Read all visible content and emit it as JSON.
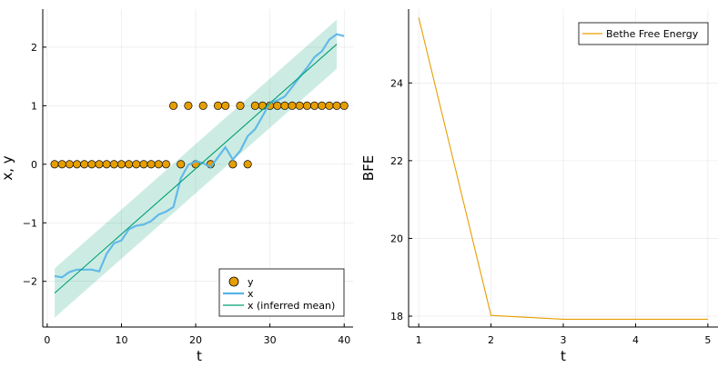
{
  "chart_data": [
    {
      "type": "scatter+line",
      "xlabel": "t",
      "ylabel": "x, y",
      "xlim": [
        -0.6,
        41.2
      ],
      "ylim": [
        -2.78,
        2.65
      ],
      "xticks": [
        0,
        10,
        20,
        30,
        40
      ],
      "yticks": [
        -2,
        -1,
        0,
        1,
        2
      ],
      "ytick_labels": [
        "−2",
        "−1",
        "0",
        "1",
        "2"
      ],
      "grid": true,
      "legend_position": "bottom-right",
      "series": [
        {
          "name": "y",
          "kind": "scatter",
          "color": "#e69f00",
          "x": [
            1,
            2,
            3,
            4,
            5,
            6,
            7,
            8,
            9,
            10,
            11,
            12,
            13,
            14,
            15,
            16,
            17,
            18,
            19,
            20,
            21,
            22,
            23,
            24,
            25,
            26,
            27,
            28,
            29,
            30,
            31,
            32,
            33,
            34,
            35,
            36,
            37,
            38,
            39,
            40
          ],
          "y": [
            0,
            0,
            0,
            0,
            0,
            0,
            0,
            0,
            0,
            0,
            0,
            0,
            0,
            0,
            0,
            0,
            1,
            0,
            1,
            0,
            1,
            0,
            1,
            1,
            0,
            1,
            0,
            1,
            1,
            1,
            1,
            1,
            1,
            1,
            1,
            1,
            1,
            1,
            1,
            1
          ]
        },
        {
          "name": "x",
          "kind": "line",
          "color": "#56b4e9",
          "x": [
            1,
            2,
            3,
            4,
            5,
            6,
            7,
            8,
            9,
            10,
            11,
            12,
            13,
            14,
            15,
            16,
            17,
            18,
            19,
            20,
            21,
            22,
            23,
            24,
            25,
            26,
            27,
            28,
            29,
            30,
            31,
            32,
            33,
            34,
            35,
            36,
            37,
            38,
            39,
            40
          ],
          "y": [
            -1.91,
            -1.93,
            -1.84,
            -1.8,
            -1.8,
            -1.8,
            -1.83,
            -1.53,
            -1.35,
            -1.3,
            -1.11,
            -1.05,
            -1.03,
            -0.97,
            -0.86,
            -0.81,
            -0.73,
            -0.24,
            -0.01,
            0.05,
            0.02,
            -0.05,
            0.12,
            0.29,
            0.08,
            0.23,
            0.48,
            0.6,
            0.82,
            1.05,
            1.09,
            1.16,
            1.32,
            1.49,
            1.65,
            1.83,
            1.93,
            2.13,
            2.22,
            2.19
          ]
        },
        {
          "name": "x (inferred mean)",
          "kind": "line-ribbon",
          "color": "#009e73",
          "x_start": 1,
          "x_end": 39,
          "y_start": -2.2,
          "y_end": 2.05,
          "ribbon_halfwidth": 0.42
        }
      ]
    },
    {
      "type": "line",
      "xlabel": "t",
      "ylabel": "BFE",
      "xlim": [
        0.86,
        5.14
      ],
      "ylim": [
        17.72,
        25.9
      ],
      "xticks": [
        1,
        2,
        3,
        4,
        5
      ],
      "yticks": [
        18,
        20,
        22,
        24
      ],
      "grid": true,
      "legend_position": "top-right",
      "series": [
        {
          "name": "Bethe Free Energy",
          "color": "#e69f00",
          "x": [
            1,
            2,
            3,
            4,
            5
          ],
          "y": [
            25.68,
            18.02,
            17.92,
            17.92,
            17.92
          ]
        }
      ]
    }
  ]
}
